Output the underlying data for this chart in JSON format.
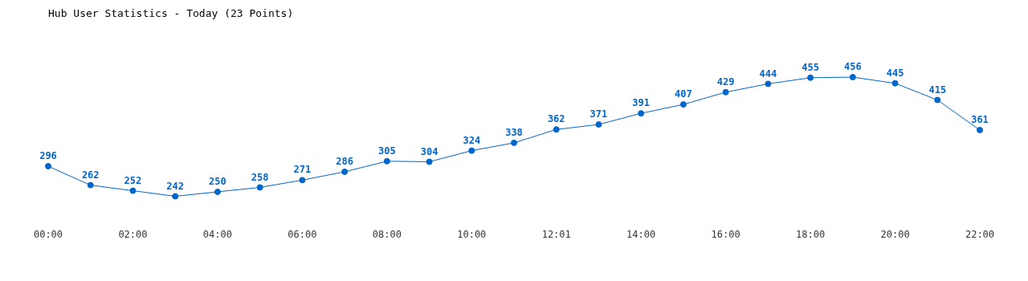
{
  "chart_data": {
    "type": "line",
    "title": "Hub User Statistics - Today (23 Points)",
    "categories": [
      "00:00",
      null,
      "02:00",
      null,
      "04:00",
      null,
      "06:00",
      null,
      "08:00",
      null,
      "10:00",
      null,
      "12:01",
      null,
      "14:00",
      null,
      "16:00",
      null,
      "18:00",
      null,
      "20:00",
      null,
      "22:00"
    ],
    "series": [
      {
        "color": "#0066cc",
        "values": [
          296,
          262,
          252,
          242,
          250,
          258,
          271,
          286,
          305,
          304,
          324,
          338,
          362,
          371,
          391,
          407,
          429,
          444,
          455,
          456,
          445,
          415,
          361
        ]
      }
    ],
    "data_labels": true,
    "marker": "circle",
    "line_style": "solid",
    "grid": false,
    "legend": false,
    "tick_labels": "x"
  }
}
